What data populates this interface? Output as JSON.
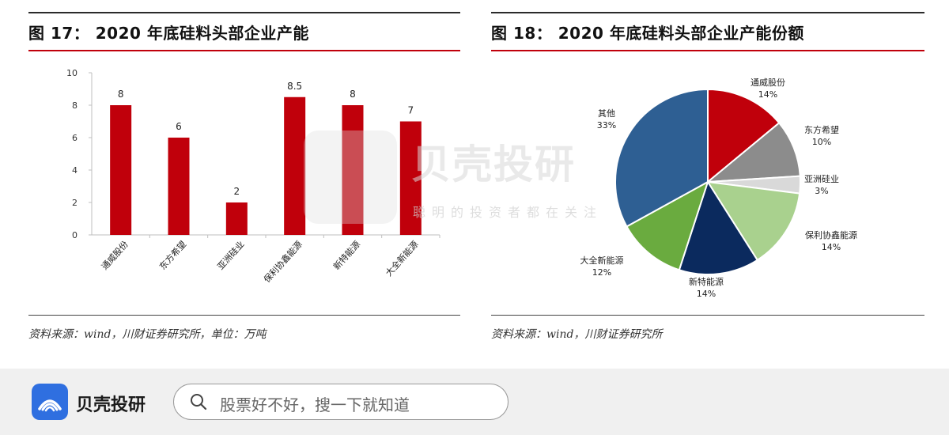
{
  "left_panel": {
    "title": "图 17： 2020 年底硅料头部企业产能",
    "source": "资料来源：wind，川财证券研究所，单位：万吨"
  },
  "right_panel": {
    "title": "图 18： 2020 年底硅料头部企业产能份额",
    "source": "资料来源：wind，川财证券研究所"
  },
  "watermark": {
    "brand": "贝壳投研",
    "slogan": "聪明的投资者都在关注"
  },
  "footer": {
    "brand": "贝壳投研",
    "search_placeholder": "股票好不好，搜一下就知道"
  },
  "colors": {
    "bar": "#c0000b",
    "accent_line": "#c0000b"
  },
  "chart_data": [
    {
      "type": "bar",
      "title": "",
      "xlabel": "",
      "ylabel": "",
      "categories": [
        "通威股份",
        "东方希望",
        "亚洲硅业",
        "保利协鑫能源",
        "新特能源",
        "大全新能源"
      ],
      "values": [
        8,
        6,
        2,
        8.5,
        8,
        7
      ],
      "data_labels": [
        "8",
        "6",
        "2",
        "8.5",
        "8",
        "7"
      ],
      "ylim": [
        0,
        10
      ],
      "yticks": [
        "0",
        "2",
        "4",
        "6",
        "8",
        "10"
      ],
      "grid": false,
      "color": "#c0000b"
    },
    {
      "type": "pie",
      "title": "",
      "slices": [
        {
          "label": "通威股份",
          "value": 14,
          "pct_label": "14%",
          "color": "#c0000b"
        },
        {
          "label": "东方希望",
          "value": 10,
          "pct_label": "10%",
          "color": "#8c8c8c"
        },
        {
          "label": "亚洲硅业",
          "value": 3,
          "pct_label": "3%",
          "color": "#d9d9d9"
        },
        {
          "label": "保利协鑫能源",
          "value": 14,
          "pct_label": "14%",
          "color": "#a9d18e"
        },
        {
          "label": "新特能源",
          "value": 14,
          "pct_label": "14%",
          "color": "#0b2a5e"
        },
        {
          "label": "大全新能源",
          "value": 12,
          "pct_label": "12%",
          "color": "#6aab3f"
        },
        {
          "label": "其他",
          "value": 33,
          "pct_label": "33%",
          "color": "#2e5f93"
        }
      ]
    }
  ]
}
